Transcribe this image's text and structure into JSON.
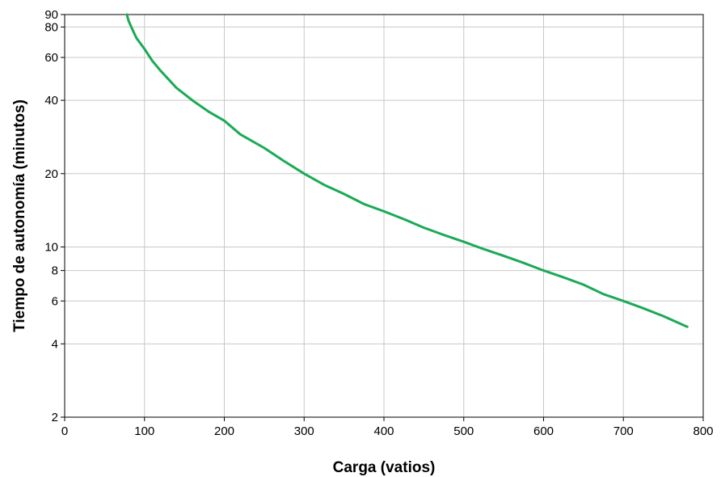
{
  "chart_data": {
    "type": "line",
    "title": "",
    "xlabel": "Carga (vatios)",
    "ylabel": "Tiempo de autonomía (minutos)",
    "xlim": [
      0,
      800
    ],
    "ylim": [
      2,
      90
    ],
    "yscale": "log",
    "grid": true,
    "x_ticks": [
      0,
      100,
      200,
      300,
      400,
      500,
      600,
      700,
      800
    ],
    "x_tick_labels": [
      "0",
      "100",
      "200",
      "300",
      "400",
      "500",
      "600",
      "700",
      "800"
    ],
    "y_ticks": [
      2,
      4,
      6,
      8,
      10,
      20,
      40,
      60,
      80,
      90
    ],
    "y_tick_labels": [
      "2",
      "4",
      "6",
      "8",
      "10",
      "20",
      "40",
      "60",
      "80",
      "90"
    ],
    "series": [
      {
        "color": "#1aaa55",
        "x": [
          78,
          80,
          85,
          90,
          100,
          110,
          120,
          140,
          160,
          180,
          200,
          220,
          250,
          275,
          300,
          325,
          350,
          375,
          400,
          425,
          450,
          475,
          500,
          525,
          550,
          575,
          600,
          625,
          650,
          675,
          700,
          725,
          750,
          780
        ],
        "y": [
          90,
          85,
          78,
          72,
          65,
          58,
          53,
          45,
          40,
          36,
          33,
          29,
          25.5,
          22.5,
          20,
          18,
          16.5,
          15,
          14,
          13,
          12,
          11.2,
          10.5,
          9.8,
          9.2,
          8.6,
          8,
          7.5,
          7,
          6.4,
          6,
          5.6,
          5.2,
          4.7
        ]
      }
    ]
  }
}
